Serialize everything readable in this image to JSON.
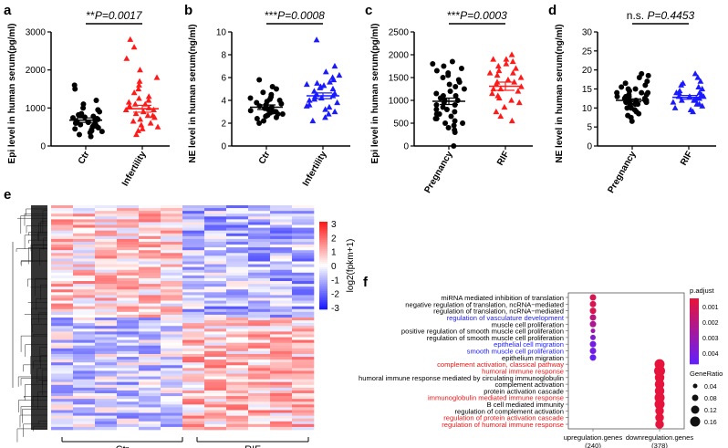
{
  "colors": {
    "black": "#000000",
    "red": "#ff1a1a",
    "blue": "#1a1aff",
    "go_red": "#e81818",
    "go_blue": "#2020e0"
  },
  "chart_data": [
    {
      "panel": "a",
      "type": "scatter",
      "ylabel": "Epi level in human serum(pg/ml)",
      "ylim": [
        0,
        3000
      ],
      "yticks": [
        0,
        1000,
        2000,
        3000
      ],
      "categories": [
        "Ctr",
        "Infertility"
      ],
      "sig": "**",
      "pval": "P=0.0017",
      "series": [
        {
          "name": "Ctr",
          "color": "#000000",
          "marker": "circle",
          "mean": 680,
          "sem": 60,
          "values": [
            250,
            300,
            350,
            380,
            400,
            420,
            450,
            480,
            500,
            520,
            540,
            560,
            580,
            600,
            620,
            640,
            660,
            680,
            700,
            720,
            740,
            760,
            780,
            800,
            820,
            850,
            900,
            950,
            1000,
            1100,
            1200,
            1500,
            1600
          ]
        },
        {
          "name": "Infertility",
          "color": "#ff1a1a",
          "marker": "triangle",
          "mean": 980,
          "sem": 90,
          "values": [
            300,
            400,
            450,
            500,
            550,
            600,
            650,
            700,
            750,
            800,
            850,
            900,
            950,
            1000,
            1050,
            1100,
            1150,
            1200,
            1250,
            1300,
            1400,
            1500,
            1600,
            1700,
            1800,
            2000,
            2300,
            2600,
            2800,
            800,
            950,
            1100
          ]
        }
      ]
    },
    {
      "panel": "b",
      "type": "scatter",
      "ylabel": "NE level in human serum(ng/ml)",
      "ylim": [
        0,
        10
      ],
      "yticks": [
        0,
        2,
        4,
        6,
        8,
        10
      ],
      "categories": [
        "Ctr",
        "Infertility"
      ],
      "sig": "***",
      "pval": "P=0.0008",
      "series": [
        {
          "name": "Ctr",
          "color": "#000000",
          "marker": "circle",
          "mean": 3.4,
          "sem": 0.2,
          "values": [
            2.0,
            2.2,
            2.4,
            2.5,
            2.6,
            2.7,
            2.8,
            2.9,
            3.0,
            3.1,
            3.2,
            3.3,
            3.3,
            3.4,
            3.5,
            3.6,
            3.7,
            3.8,
            3.9,
            4.0,
            4.1,
            4.2,
            4.3,
            4.5,
            4.7,
            5.0,
            5.2,
            5.8,
            3.0,
            2.8,
            3.6
          ]
        },
        {
          "name": "Infertility",
          "color": "#1a1aff",
          "marker": "triangle",
          "mean": 4.4,
          "sem": 0.25,
          "values": [
            2.2,
            2.5,
            2.8,
            3.0,
            3.2,
            3.4,
            3.6,
            3.8,
            4.0,
            4.1,
            4.2,
            4.4,
            4.5,
            4.6,
            4.8,
            5.0,
            5.1,
            5.2,
            5.4,
            5.5,
            5.6,
            5.8,
            6.0,
            6.2,
            6.5,
            7.0,
            9.3,
            3.5,
            4.3,
            5.3
          ]
        }
      ]
    },
    {
      "panel": "c",
      "type": "scatter",
      "ylabel": "Epi level in human serum(pg/ml)",
      "ylim": [
        0,
        2500
      ],
      "yticks": [
        0,
        500,
        1000,
        1500,
        2000,
        2500
      ],
      "categories": [
        "Pregnancy",
        "RIF"
      ],
      "sig": "***",
      "pval": "P=0.0003",
      "series": [
        {
          "name": "Pregnancy",
          "color": "#000000",
          "marker": "circle",
          "mean": 980,
          "sem": 70,
          "values": [
            0,
            300,
            350,
            400,
            450,
            500,
            550,
            600,
            650,
            700,
            750,
            800,
            850,
            900,
            950,
            1000,
            1050,
            1100,
            1150,
            1200,
            1250,
            1300,
            1350,
            1400,
            1450,
            1500,
            1550,
            1600,
            1650,
            1700,
            1750,
            1800,
            1850,
            500,
            600,
            700,
            800,
            900,
            1000,
            1100
          ]
        },
        {
          "name": "RIF",
          "color": "#ff1a1a",
          "marker": "triangle",
          "mean": 1310,
          "sem": 90,
          "values": [
            550,
            650,
            750,
            850,
            950,
            1050,
            1150,
            1200,
            1250,
            1300,
            1350,
            1400,
            1450,
            1500,
            1550,
            1600,
            1650,
            1700,
            1750,
            1800,
            1850,
            1900,
            2000,
            1000,
            1100,
            1250,
            1400,
            1600,
            1900
          ]
        }
      ]
    },
    {
      "panel": "d",
      "type": "scatter",
      "ylabel": "NE level in human serum(ng/ml)",
      "ylim": [
        0,
        30
      ],
      "yticks": [
        0,
        5,
        10,
        15,
        20,
        25,
        30
      ],
      "categories": [
        "Pregnancy",
        "RIF"
      ],
      "sig": "n.s.",
      "pval": "P=0.4453",
      "series": [
        {
          "name": "Pregnancy",
          "color": "#000000",
          "marker": "circle",
          "mean": 12.0,
          "sem": 0.4,
          "values": [
            6.5,
            7.5,
            8.0,
            8.5,
            9.0,
            9.5,
            10.0,
            10.5,
            11.0,
            11.0,
            11.5,
            11.5,
            12.0,
            12.0,
            12.0,
            12.5,
            12.5,
            13.0,
            13.0,
            13.5,
            13.5,
            14.0,
            14.0,
            14.5,
            15.0,
            15.5,
            16.0,
            16.5,
            17.0,
            18.0,
            18.5,
            19.0,
            10.0,
            11.0,
            12.0,
            13.0,
            14.0,
            15.0
          ]
        },
        {
          "name": "RIF",
          "color": "#1a1aff",
          "marker": "triangle",
          "mean": 12.8,
          "sem": 0.5,
          "values": [
            9.0,
            9.5,
            10.0,
            10.5,
            11.0,
            11.5,
            12.0,
            12.0,
            12.5,
            12.5,
            13.0,
            13.0,
            13.5,
            14.0,
            14.0,
            14.5,
            15.0,
            15.5,
            16.0,
            16.5,
            17.0,
            18.0,
            19.0,
            12.0,
            13.0,
            14.0,
            11.0
          ]
        }
      ]
    },
    {
      "panel": "e",
      "type": "heatmap",
      "columns": [
        "Ctr",
        "RIF"
      ],
      "legend_title": "log2(fpkm+1)",
      "legend_ticks": [
        "3",
        "2",
        "1",
        "0",
        "-1",
        "-2",
        "-3"
      ],
      "values": []
    },
    {
      "panel": "f",
      "type": "scatter",
      "title": "",
      "x_categories": [
        "upregulation.genes\n(240)",
        "downregulation.genes\n(378)"
      ],
      "x_labels": [
        {
          "line1": "upregulation.genes",
          "line2": "(240)"
        },
        {
          "line1": "downregulation.genes",
          "line2": "(378)"
        }
      ],
      "terms": [
        {
          "label": "miRNA mediated inhibition of translation",
          "color": "#000000",
          "col": 0,
          "ratio": 0.08,
          "padj": 0.0005
        },
        {
          "label": "negative regulation of translation, ncRNA−mediated",
          "color": "#000000",
          "col": 0,
          "ratio": 0.08,
          "padj": 0.0005
        },
        {
          "label": "regulation of translation, ncRNA−mediated",
          "color": "#000000",
          "col": 0,
          "ratio": 0.08,
          "padj": 0.0005
        },
        {
          "label": "regulation of vasculature development",
          "color": "#1a1aff",
          "col": 0,
          "ratio": 0.08,
          "padj": 0.0015
        },
        {
          "label": "muscle cell proliferation",
          "color": "#000000",
          "col": 0,
          "ratio": 0.08,
          "padj": 0.002
        },
        {
          "label": "positive regulation of smooth muscle cell proliferation",
          "color": "#000000",
          "col": 0,
          "ratio": 0.04,
          "padj": 0.0025
        },
        {
          "label": "regulation of smooth muscle cell proliferation",
          "color": "#000000",
          "col": 0,
          "ratio": 0.06,
          "padj": 0.0035
        },
        {
          "label": "epithelial cell migration",
          "color": "#1a1aff",
          "col": 0,
          "ratio": 0.08,
          "padj": 0.004
        },
        {
          "label": "smooth muscle cell proliferation",
          "color": "#1a1aff",
          "col": 0,
          "ratio": 0.08,
          "padj": 0.004
        },
        {
          "label": "epithelium migration",
          "color": "#000000",
          "col": 0,
          "ratio": 0.08,
          "padj": 0.0045
        },
        {
          "label": "complement activation, classical pathway",
          "color": "#e81818",
          "col": 1,
          "ratio": 0.16,
          "padj": 1e-05
        },
        {
          "label": "humoral immune response",
          "color": "#e81818",
          "col": 1,
          "ratio": 0.18,
          "padj": 1e-05
        },
        {
          "label": "humoral immune response mediated by circulating immunoglobulin",
          "color": "#000000",
          "col": 1,
          "ratio": 0.15,
          "padj": 1e-05
        },
        {
          "label": "complement activation",
          "color": "#000000",
          "col": 1,
          "ratio": 0.15,
          "padj": 1e-05
        },
        {
          "label": "protein activation cascade",
          "color": "#000000",
          "col": 1,
          "ratio": 0.15,
          "padj": 1e-05
        },
        {
          "label": "immunoglobulin mediated immune response",
          "color": "#e81818",
          "col": 1,
          "ratio": 0.16,
          "padj": 1e-05
        },
        {
          "label": "B cell mediated immunity",
          "color": "#000000",
          "col": 1,
          "ratio": 0.16,
          "padj": 1e-05
        },
        {
          "label": "regulation of complement activation",
          "color": "#000000",
          "col": 1,
          "ratio": 0.13,
          "padj": 1e-05
        },
        {
          "label": "regulation of protein activation cascade",
          "color": "#e81818",
          "col": 1,
          "ratio": 0.13,
          "padj": 1e-05
        },
        {
          "label": "regulation of humoral immune response",
          "color": "#e81818",
          "col": 1,
          "ratio": 0.13,
          "padj": 1e-05
        }
      ],
      "padj_title": "p.adjust",
      "padj_ticks": [
        "0.001",
        "0.002",
        "0.003",
        "0.004"
      ],
      "ratio_title": "GeneRatio",
      "ratio_ticks": [
        "0.04",
        "0.08",
        "0.12",
        "0.16"
      ]
    }
  ],
  "panel_labels": [
    "a",
    "b",
    "c",
    "d",
    "e",
    "f"
  ]
}
